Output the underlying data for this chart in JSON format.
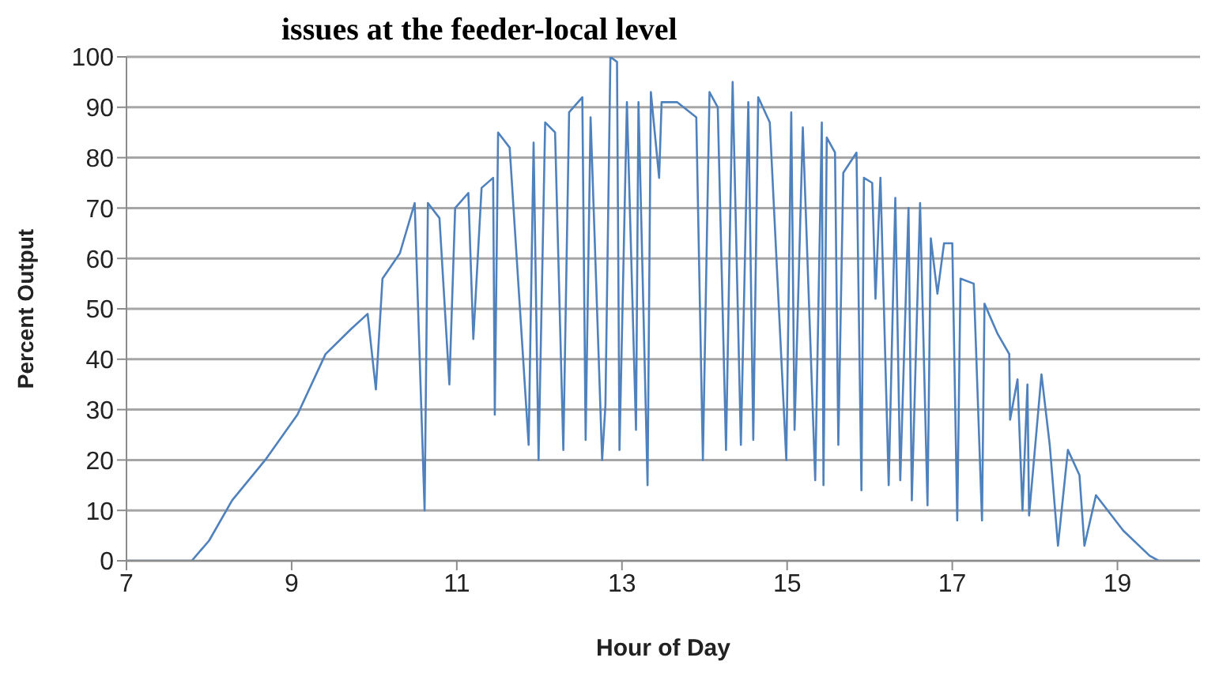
{
  "chart_data": {
    "type": "line",
    "title": "issues at the feeder-local level",
    "xlabel": "Hour of Day",
    "ylabel": "Percent Output",
    "x": [
      7,
      7.5,
      7.79,
      8.0,
      8.28,
      8.68,
      9.07,
      9.41,
      9.72,
      9.92,
      10.02,
      10.1,
      10.31,
      10.49,
      10.61,
      10.65,
      10.79,
      10.91,
      10.98,
      11.14,
      11.2,
      11.3,
      11.44,
      11.46,
      11.5,
      11.64,
      11.87,
      11.93,
      11.99,
      12.07,
      12.19,
      12.29,
      12.36,
      12.52,
      12.56,
      12.62,
      12.76,
      12.8,
      12.86,
      12.94,
      12.97,
      13.06,
      13.17,
      13.2,
      13.31,
      13.35,
      13.45,
      13.48,
      13.67,
      13.9,
      13.98,
      14.06,
      14.16,
      14.26,
      14.34,
      14.44,
      14.53,
      14.59,
      14.65,
      14.79,
      14.99,
      15.05,
      15.09,
      15.19,
      15.34,
      15.42,
      15.44,
      15.48,
      15.58,
      15.62,
      15.68,
      15.84,
      15.9,
      15.93,
      16.03,
      16.07,
      16.13,
      16.23,
      16.31,
      16.37,
      16.47,
      16.51,
      16.61,
      16.7,
      16.74,
      16.82,
      16.9,
      17.0,
      17.06,
      17.1,
      17.26,
      17.36,
      17.39,
      17.55,
      17.69,
      17.7,
      17.79,
      17.85,
      17.91,
      17.93,
      18.08,
      18.18,
      18.28,
      18.4,
      18.54,
      18.6,
      18.74,
      19.07,
      19.39,
      19.5,
      20
    ],
    "values": [
      0,
      0,
      0,
      4,
      12,
      20,
      29,
      41,
      46,
      49,
      34,
      56,
      61,
      71,
      10,
      71,
      68,
      35,
      70,
      73,
      44,
      74,
      76,
      29,
      85,
      82,
      23,
      83,
      20,
      87,
      85,
      22,
      89,
      92,
      24,
      88,
      20,
      31,
      100,
      99,
      22,
      91,
      26,
      91,
      15,
      93,
      76,
      91,
      91,
      88,
      20,
      93,
      90,
      22,
      95,
      23,
      91,
      24,
      92,
      87,
      20,
      89,
      26,
      86,
      16,
      87,
      15,
      84,
      81,
      23,
      77,
      81,
      14,
      76,
      75,
      52,
      76,
      15,
      72,
      16,
      70,
      12,
      71,
      11,
      64,
      53,
      63,
      63,
      8,
      56,
      55,
      8,
      51,
      45,
      41,
      28,
      36,
      10,
      35,
      9,
      37,
      23,
      3,
      22,
      17,
      3,
      13,
      6,
      1,
      0,
      0
    ],
    "color": "#4f81bd",
    "xlim": [
      7,
      20
    ],
    "xticks": [
      7,
      9,
      11,
      13,
      15,
      17,
      19
    ],
    "ylim": [
      0,
      100
    ],
    "yticks": [
      0,
      10,
      20,
      30,
      40,
      50,
      60,
      70,
      80,
      90,
      100
    ],
    "grid": "y",
    "marker": "none",
    "line_style": "solid"
  }
}
